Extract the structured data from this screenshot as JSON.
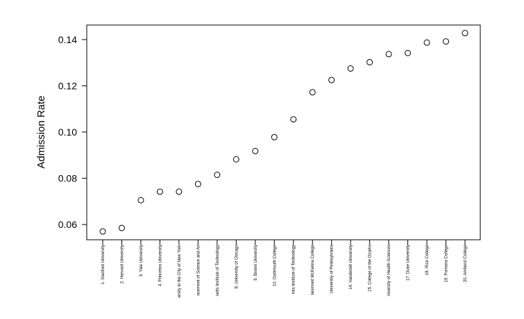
{
  "chart_data": {
    "type": "scatter",
    "y_label": "Admission Rate",
    "categories": [
      "1. Stanford University",
      "2. Harvard University",
      "3. Yale University",
      "4. Princeton University",
      "ersity in the City of New York",
      "ncement of Science and Art",
      "setts Institute of Technology",
      "8. University of Chicago",
      "9. Brown University",
      "10. Dartmouth College",
      "rnia Institute of Technology",
      "laremont McKenna College",
      "University of Pennsylvania",
      "14. Vanderbilt University",
      "15. College of the Ozarks",
      "niversity of Health Sciences",
      "17. Duke University",
      "18. Rice College",
      "19. Pomona College",
      "20. Amherst College"
    ],
    "values": [
      0.057,
      0.0585,
      0.0705,
      0.0742,
      0.0742,
      0.0775,
      0.0815,
      0.0882,
      0.0918,
      0.0978,
      0.1055,
      0.1172,
      0.1225,
      0.1275,
      0.1302,
      0.1337,
      0.1342,
      0.1387,
      0.1392,
      0.1428
    ],
    "color": "#000000",
    "ylim": [
      0.0534,
      0.1463
    ],
    "yticks": [
      0.06,
      0.08,
      {
        "value": 0.1,
        "label": "0.10"
      },
      0.12,
      0.14
    ]
  }
}
